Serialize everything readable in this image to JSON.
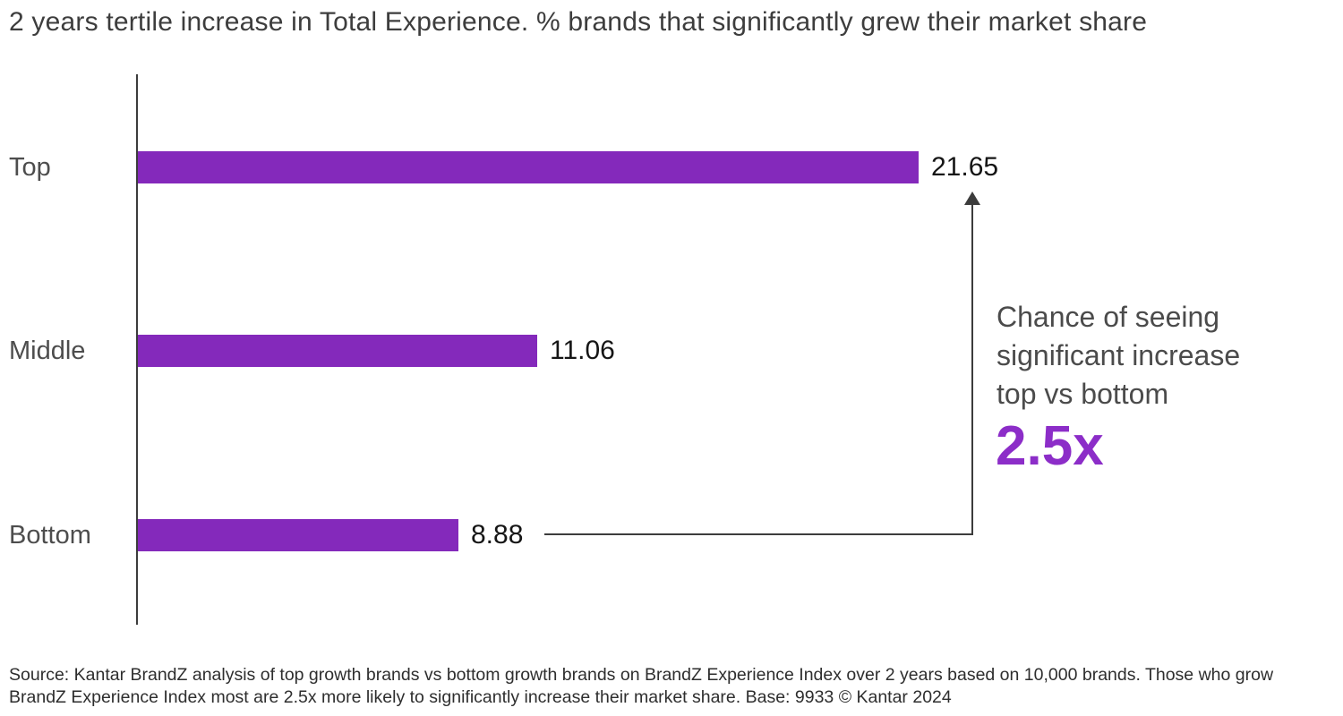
{
  "title": "2 years tertile increase in Total Experience. % brands that significantly grew their market share",
  "chart_data": {
    "type": "bar",
    "orientation": "horizontal",
    "title": "2 years tertile increase in Total Experience. % brands that significantly grew their market share",
    "categories": [
      "Top",
      "Middle",
      "Bottom"
    ],
    "values": [
      21.65,
      11.06,
      8.88
    ],
    "value_labels": [
      "21.65",
      "11.06",
      "8.88"
    ],
    "xlabel": "",
    "ylabel": "",
    "xlim": [
      0,
      24
    ],
    "grid": false,
    "legend": false,
    "bar_color": "#8429bb"
  },
  "annotation": {
    "text": "Chance of seeing\nsignificant increase\ntop vs bottom",
    "highlight": "2.5x",
    "highlight_color": "#8c2dc8"
  },
  "colors": {
    "bar": "#8429bb",
    "accent": "#8c2dc8",
    "axis": "#3c3c3c"
  },
  "source": "Source: Kantar BrandZ analysis of top growth brands vs bottom growth brands on BrandZ Experience Index over 2 years based on 10,000 brands. Those who grow\nBrandZ Experience Index most are 2.5x more likely to significantly increase their market share. Base: 9933 © Kantar 2024"
}
